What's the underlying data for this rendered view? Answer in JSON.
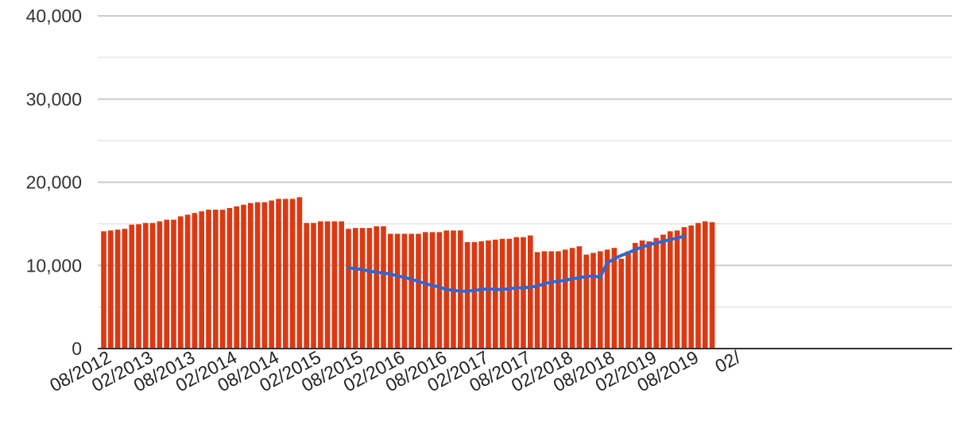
{
  "chart_data": {
    "type": "bar",
    "title": "",
    "xlabel": "",
    "ylabel": "",
    "ylim": [
      0,
      40000
    ],
    "grid": true,
    "y_ticks": [
      "0",
      "10,000",
      "20,000",
      "30,000",
      "40,000"
    ],
    "x_tick_labels": [
      "08/2012",
      "02/2013",
      "08/2013",
      "02/2014",
      "08/2014",
      "02/2015",
      "08/2015",
      "02/2016",
      "08/2016",
      "02/2017",
      "08/2017",
      "02/2018",
      "08/2018",
      "02/2019",
      "08/2019",
      "02/"
    ],
    "start_month": "08/2012",
    "colors": {
      "bars": "#dc3912",
      "line": "#3366cc",
      "grid_major": "#cccccc",
      "grid_minor": "#ebebeb",
      "baseline": "#333333"
    },
    "series": [
      {
        "type": "bar",
        "values": [
          14100,
          14200,
          14300,
          14400,
          14900,
          14950,
          15100,
          15100,
          15300,
          15500,
          15500,
          15900,
          16100,
          16300,
          16500,
          16700,
          16700,
          16700,
          16900,
          17100,
          17300,
          17500,
          17600,
          17600,
          17800,
          18000,
          18000,
          18000,
          18200,
          15100,
          15100,
          15300,
          15300,
          15300,
          15300,
          14400,
          14500,
          14500,
          14500,
          14700,
          14700,
          13800,
          13800,
          13800,
          13800,
          13800,
          14000,
          14000,
          14000,
          14200,
          14200,
          14200,
          12800,
          12800,
          12900,
          13000,
          13100,
          13200,
          13200,
          13400,
          13400,
          13600,
          11600,
          11700,
          11700,
          11700,
          11900,
          12100,
          12300,
          11300,
          11500,
          11700,
          11900,
          12100,
          10800,
          11700,
          12700,
          13000,
          12900,
          13300,
          13700,
          14100,
          14200,
          14600,
          14800,
          15100,
          15300,
          15200
        ]
      },
      {
        "type": "line",
        "start_index": 35,
        "values": [
          9700,
          9600,
          9500,
          9300,
          9200,
          9050,
          9000,
          8700,
          8600,
          8300,
          8100,
          7800,
          7600,
          7400,
          7100,
          7000,
          6900,
          6900,
          7000,
          7100,
          7200,
          7100,
          7100,
          7200,
          7300,
          7300,
          7400,
          7500,
          7800,
          8000,
          8100,
          8200,
          8400,
          8500,
          8700,
          8700,
          8600,
          10300,
          10800,
          11200,
          11500,
          11900,
          12200,
          12500,
          12700,
          12900,
          13100,
          13300,
          13500
        ]
      }
    ]
  }
}
